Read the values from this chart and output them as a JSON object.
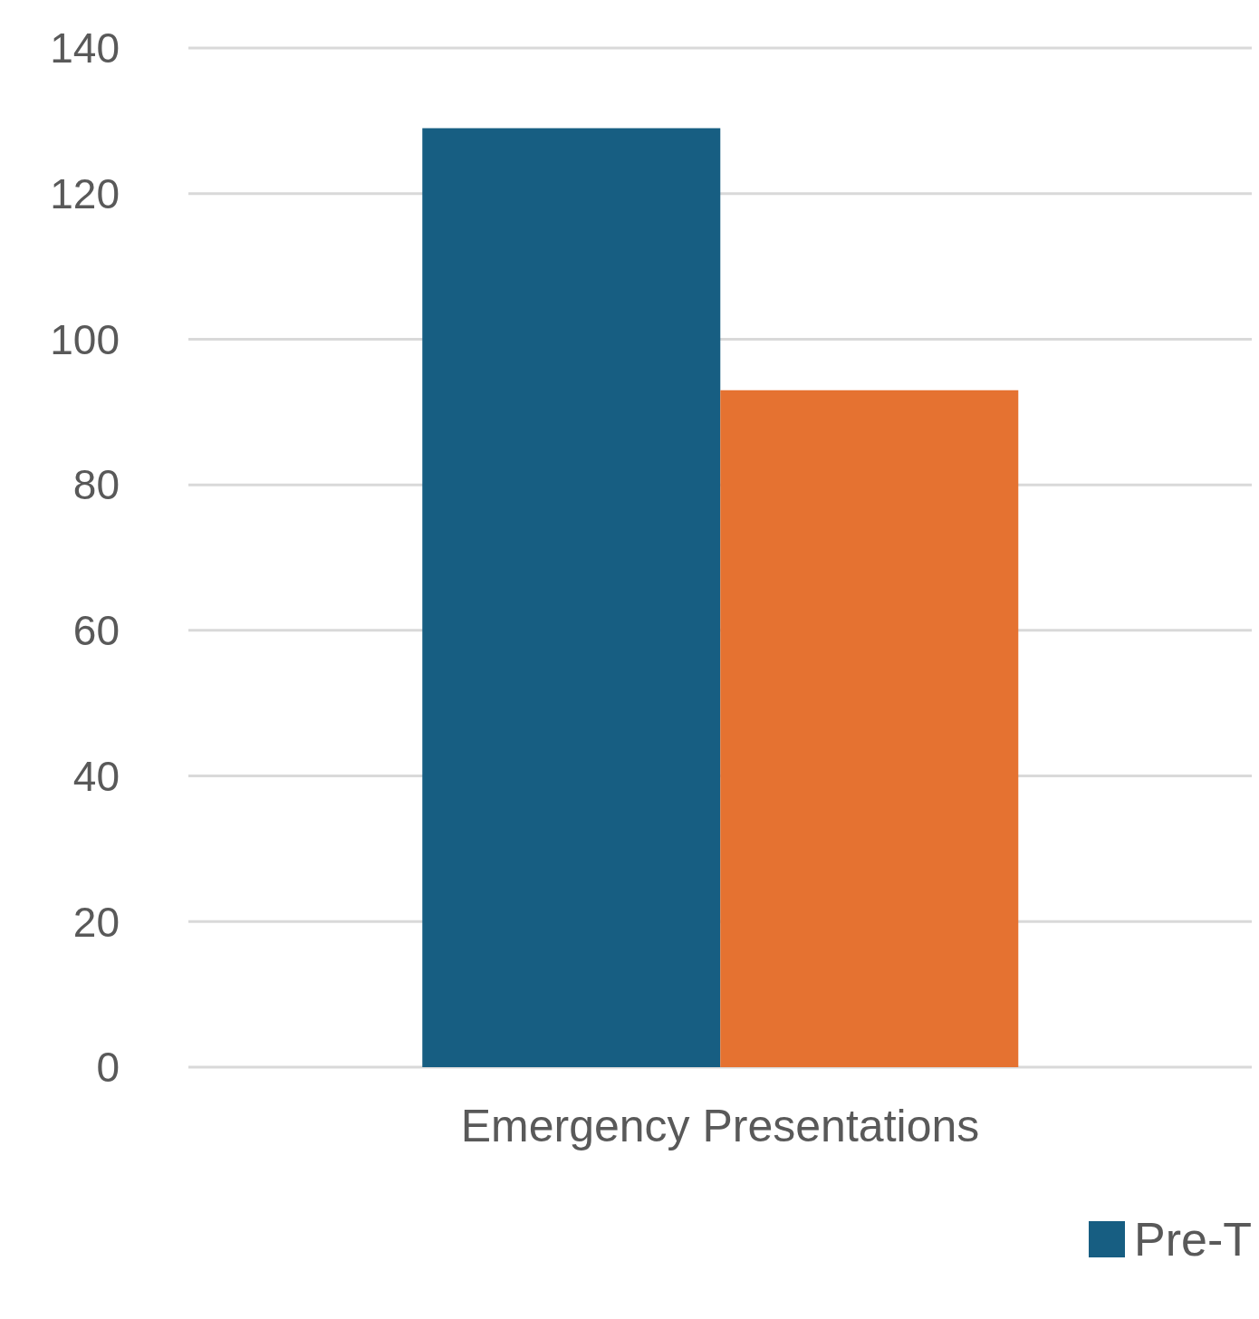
{
  "chart_data": {
    "type": "bar",
    "categories": [
      "Emergency Presentations"
    ],
    "series": [
      {
        "name": "Pre-T",
        "color": "#175e82",
        "values": [
          129
        ]
      },
      {
        "color": "#e57231",
        "values": [
          93
        ]
      }
    ],
    "ylim": [
      0,
      140
    ],
    "yticks": [
      0,
      20,
      40,
      60,
      80,
      100,
      120,
      140
    ],
    "grid": "y",
    "legend": "bottom right"
  }
}
